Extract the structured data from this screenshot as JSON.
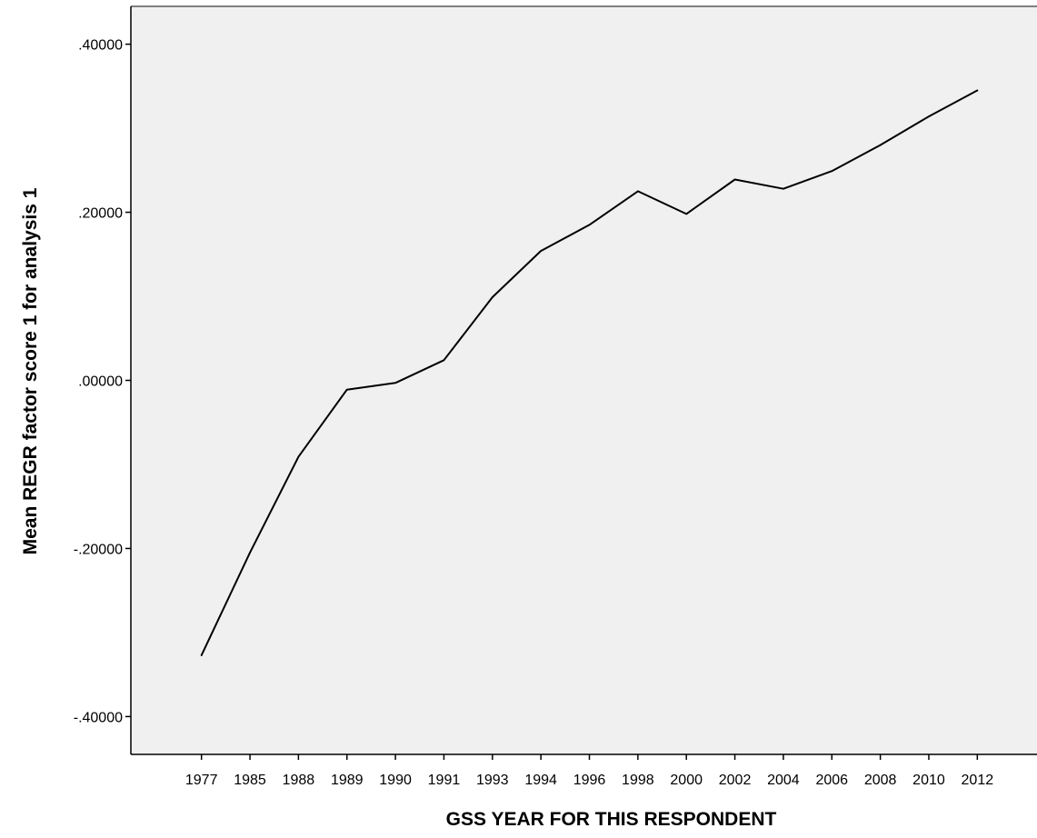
{
  "chart_data": {
    "type": "line",
    "title": "",
    "xlabel": "GSS YEAR FOR THIS RESPONDENT",
    "ylabel": "Mean REGR factor score   1 for analysis 1",
    "categories": [
      "1977",
      "1985",
      "1988",
      "1989",
      "1990",
      "1991",
      "1993",
      "1994",
      "1996",
      "1998",
      "2000",
      "2002",
      "2004",
      "2006",
      "2008",
      "2010",
      "2012"
    ],
    "yticks": [
      ".40000",
      ".20000",
      ".00000",
      "-.20000",
      "-.40000"
    ],
    "ytick_values": [
      0.4,
      0.2,
      0.0,
      -0.2,
      -0.4
    ],
    "ylim": [
      -0.445,
      0.445
    ],
    "grid": false,
    "legend": "none",
    "series": [
      {
        "values": [
          -0.327,
          -0.205,
          -0.091,
          -0.011,
          -0.003,
          0.024,
          0.099,
          0.154,
          0.185,
          0.225,
          0.198,
          0.239,
          0.228,
          0.249,
          0.28,
          0.314,
          0.345
        ],
        "color": "#000000"
      }
    ],
    "colors": {
      "plot_background": "#f0f0f0",
      "axis": "#000000",
      "frame": "#7f7f7f",
      "line": "#000000"
    }
  }
}
